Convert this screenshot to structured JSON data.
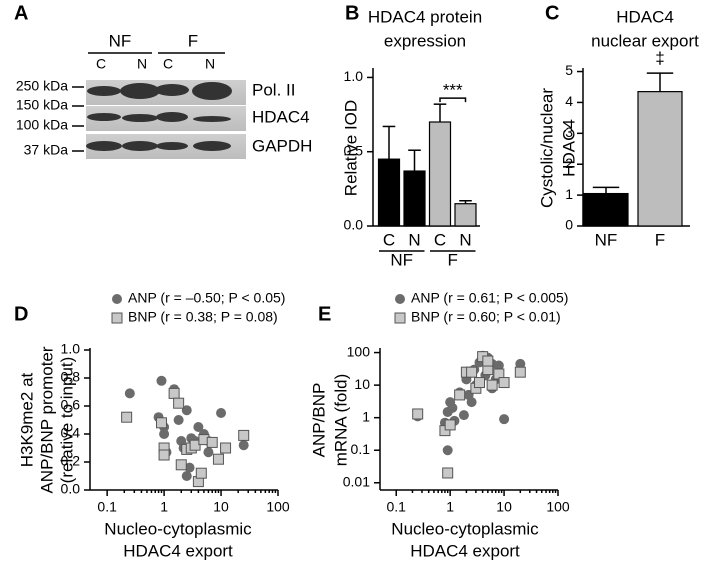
{
  "panels": [
    "A",
    "B",
    "C",
    "D",
    "E"
  ],
  "blot": {
    "groups": [
      "NF",
      "F"
    ],
    "lanes": [
      "C",
      "N",
      "C",
      "N"
    ],
    "markers": [
      "250 kDa",
      "150 kDa",
      "100 kDa",
      "37 kDa"
    ],
    "rows": [
      "Pol. II",
      "HDAC4",
      "GAPDH"
    ]
  },
  "chart_data": [
    {
      "type": "bar",
      "title": [
        "HDAC4 protein",
        "expression"
      ],
      "ylabel": [
        "Relative IOD"
      ],
      "categories": [
        "C",
        "N",
        "C",
        "N"
      ],
      "group_labels": [
        "NF",
        "F"
      ],
      "values": [
        0.45,
        0.37,
        0.7,
        0.15
      ],
      "errors": [
        0.22,
        0.14,
        0.12,
        0.02
      ],
      "colors": [
        "#000000",
        "#000000",
        "#bdbdbd",
        "#bdbdbd"
      ],
      "ylim": [
        0,
        1.05
      ],
      "yticks": [
        {
          "value": 0,
          "label": "0.0"
        },
        0.5,
        {
          "value": 1,
          "label": "1.0"
        }
      ],
      "annotation": "***"
    },
    {
      "type": "bar",
      "title": [
        "HDAC4",
        "nuclear export"
      ],
      "ylabel": [
        "Cystolic/nuclear",
        "HDAC4"
      ],
      "categories": [
        "NF",
        "F"
      ],
      "values": [
        1.05,
        4.35
      ],
      "errors": [
        0.2,
        0.6
      ],
      "colors": [
        "#000000",
        "#bdbdbd"
      ],
      "ylim": [
        0,
        5.05
      ],
      "yticks": [
        0,
        1,
        2,
        3,
        4,
        5
      ],
      "annotation": "‡"
    },
    {
      "type": "scatter",
      "ylabel": [
        "H3K9me2 at",
        "ANP/BNP promoter",
        "(relative to input)"
      ],
      "xlabel": [
        "Nucleo-cytoplasmic",
        "HDAC4 export"
      ],
      "xlog": true,
      "xlim": [
        0.05,
        100
      ],
      "xticks": [
        0.1,
        1,
        10,
        100
      ],
      "ylim": [
        0,
        1.0
      ],
      "yticks": [
        {
          "value": 0,
          "label": "0.0"
        },
        0.2,
        0.4,
        0.6,
        0.8,
        {
          "value": 1,
          "label": "1.0"
        }
      ],
      "series": [
        {
          "name": "ANP (r = –0.50; P < 0.05)",
          "color": "#6b6b6b",
          "marker": "circle",
          "x": [
            0.25,
            0.8,
            0.9,
            1,
            1,
            1.1,
            1.5,
            1.8,
            2,
            2.2,
            2.5,
            2.8,
            3,
            3.5,
            4,
            5,
            6,
            6,
            10,
            25,
            2.5
          ],
          "y": [
            0.69,
            0.52,
            0.78,
            0.45,
            0.4,
            0.27,
            0.72,
            0.5,
            0.35,
            0.3,
            0.57,
            0.16,
            0.37,
            0.35,
            0.45,
            0.4,
            0.35,
            0.27,
            0.55,
            0.32,
            0.1
          ]
        },
        {
          "name": "BNP (r = 0.38; P = 0.08)",
          "color": "#c8c8c8",
          "marker": "square",
          "x": [
            0.22,
            0.9,
            1,
            1,
            1.5,
            1.8,
            2,
            2.5,
            3,
            3.5,
            4,
            4.5,
            5,
            7,
            9,
            12,
            25
          ],
          "y": [
            0.52,
            0.48,
            0.3,
            0.25,
            0.69,
            0.62,
            0.18,
            0.29,
            0.3,
            0.32,
            0.06,
            0.12,
            0.36,
            0.34,
            0.22,
            0.3,
            0.39
          ]
        }
      ]
    },
    {
      "type": "scatter",
      "ylabel": [
        "ANP/BNP",
        "mRNA (fold)"
      ],
      "xlabel": [
        "Nucleo-cytoplasmic",
        "HDAC4 export"
      ],
      "xlog": true,
      "xlim": [
        0.05,
        100
      ],
      "xticks": [
        0.1,
        1,
        10,
        100
      ],
      "ylog": true,
      "ylim": [
        0.006,
        120
      ],
      "yticks": [
        0.01,
        0.1,
        1,
        10,
        100
      ],
      "series": [
        {
          "name": "ANP (r = 0.61; P < 0.005)",
          "color": "#6b6b6b",
          "marker": "circle",
          "x": [
            0.25,
            0.8,
            0.9,
            0.9,
            1,
            1.1,
            1.2,
            1.5,
            1.8,
            2,
            2.2,
            2.5,
            2.8,
            3,
            3.5,
            4,
            4.5,
            5,
            6,
            7,
            8,
            10,
            20,
            6
          ],
          "y": [
            1.1,
            0.7,
            0.1,
            1.5,
            3,
            2,
            0.8,
            6,
            1.2,
            15,
            5,
            3,
            30,
            10,
            50,
            80,
            20,
            70,
            45,
            15,
            40,
            0.9,
            45,
            8
          ]
        },
        {
          "name": "BNP (r = 0.60; P < 0.01)",
          "color": "#c8c8c8",
          "marker": "square",
          "x": [
            0.25,
            0.8,
            0.9,
            1,
            1.5,
            2,
            2.5,
            3,
            3.5,
            4,
            5,
            5,
            6,
            8,
            10,
            20
          ],
          "y": [
            1.3,
            0.4,
            0.02,
            0.6,
            5,
            25,
            25,
            8,
            12,
            75,
            30,
            55,
            10,
            22,
            12,
            25
          ]
        }
      ]
    }
  ]
}
